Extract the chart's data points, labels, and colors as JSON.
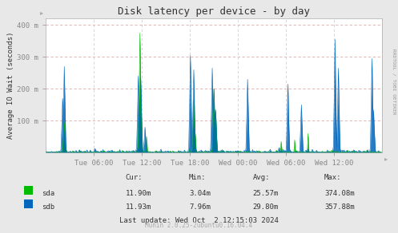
{
  "title": "Disk latency per device - by day",
  "ylabel": "Average IO Wait (seconds)",
  "bg_color": "#e8e8e8",
  "plot_bg_color": "#ffffff",
  "grid_color_h": "#ddaaaa",
  "grid_color_v": "#ffbbbb",
  "sda_color": "#00bb00",
  "sdb_color": "#0066bb",
  "ylim": [
    0,
    420
  ],
  "yticks": [
    100,
    200,
    300,
    400
  ],
  "ytick_labels": [
    "100 m",
    "200 m",
    "300 m",
    "400 m"
  ],
  "xtick_labels": [
    "Tue 06:00",
    "Tue 12:00",
    "Tue 18:00",
    "Wed 00:00",
    "Wed 06:00",
    "Wed 12:00"
  ],
  "stats_headers": [
    "Cur:",
    "Min:",
    "Avg:",
    "Max:"
  ],
  "sda_stats": [
    "11.90m",
    "3.04m",
    "25.57m",
    "374.08m"
  ],
  "sdb_stats": [
    "11.93m",
    "7.96m",
    "29.80m",
    "357.88m"
  ],
  "last_update": "Last update: Wed Oct  2 12:15:03 2024",
  "footer": "Munin 2.0.25-2ubuntu0.16.04.4",
  "rrdtool_label": "RRDTOOL / TOBI OETIKER"
}
